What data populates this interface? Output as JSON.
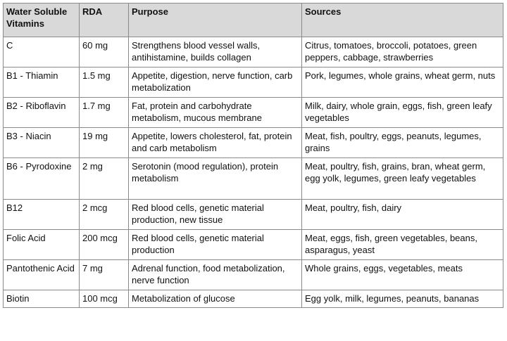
{
  "table": {
    "headers": [
      "Water Soluble Vitamins",
      "RDA",
      "Purpose",
      "Sources"
    ],
    "rows": [
      {
        "vitamin": "C",
        "rda": "60 mg",
        "purpose": "Strengthens blood vessel walls, antihistamine, builds collagen",
        "sources": "Citrus, tomatoes, broccoli, potatoes, green peppers, cabbage, strawberries"
      },
      {
        "vitamin": "B1 - Thiamin",
        "rda": "1.5 mg",
        "purpose": "Appetite, digestion, nerve function, carb metabolization",
        "sources": "Pork, legumes, whole grains, wheat germ, nuts"
      },
      {
        "vitamin": "B2 - Riboflavin",
        "rda": "1.7 mg",
        "purpose": "Fat, protein and carbohydrate metabolism, mucous membrane",
        "sources": "Milk, dairy, whole grain, eggs, fish, green leafy vegetables"
      },
      {
        "vitamin": "B3 - Niacin",
        "rda": "19 mg",
        "purpose": "Appetite, lowers cholesterol, fat, protein and carb metabolism",
        "sources": "Meat, fish, poultry, eggs, peanuts, legumes, grains"
      },
      {
        "vitamin": "B6 - Pyrodoxine",
        "rda": "2 mg",
        "purpose": "Serotonin (mood regulation), protein metabolism",
        "sources": "Meat, poultry, fish, grains, bran, wheat germ, egg yolk, legumes, green leafy vegetables"
      },
      {
        "vitamin": "B12",
        "rda": "2 mcg",
        "purpose": "Red blood cells, genetic material production, new tissue",
        "sources": "Meat, poultry, fish, dairy"
      },
      {
        "vitamin": "Folic Acid",
        "rda": "200 mcg",
        "purpose": "Red blood cells, genetic material production",
        "sources": "Meat, eggs, fish, green vegetables, beans, asparagus, yeast"
      },
      {
        "vitamin": "Pantothenic Acid",
        "rda": "7 mg",
        "purpose": "Adrenal function, food metabolization, nerve function",
        "sources": "Whole grains, eggs, vegetables, meats"
      },
      {
        "vitamin": "Biotin",
        "rda": "100 mcg",
        "purpose": "Metabolization of glucose",
        "sources": "Egg yolk, milk, legumes, peanuts, bananas"
      }
    ]
  }
}
